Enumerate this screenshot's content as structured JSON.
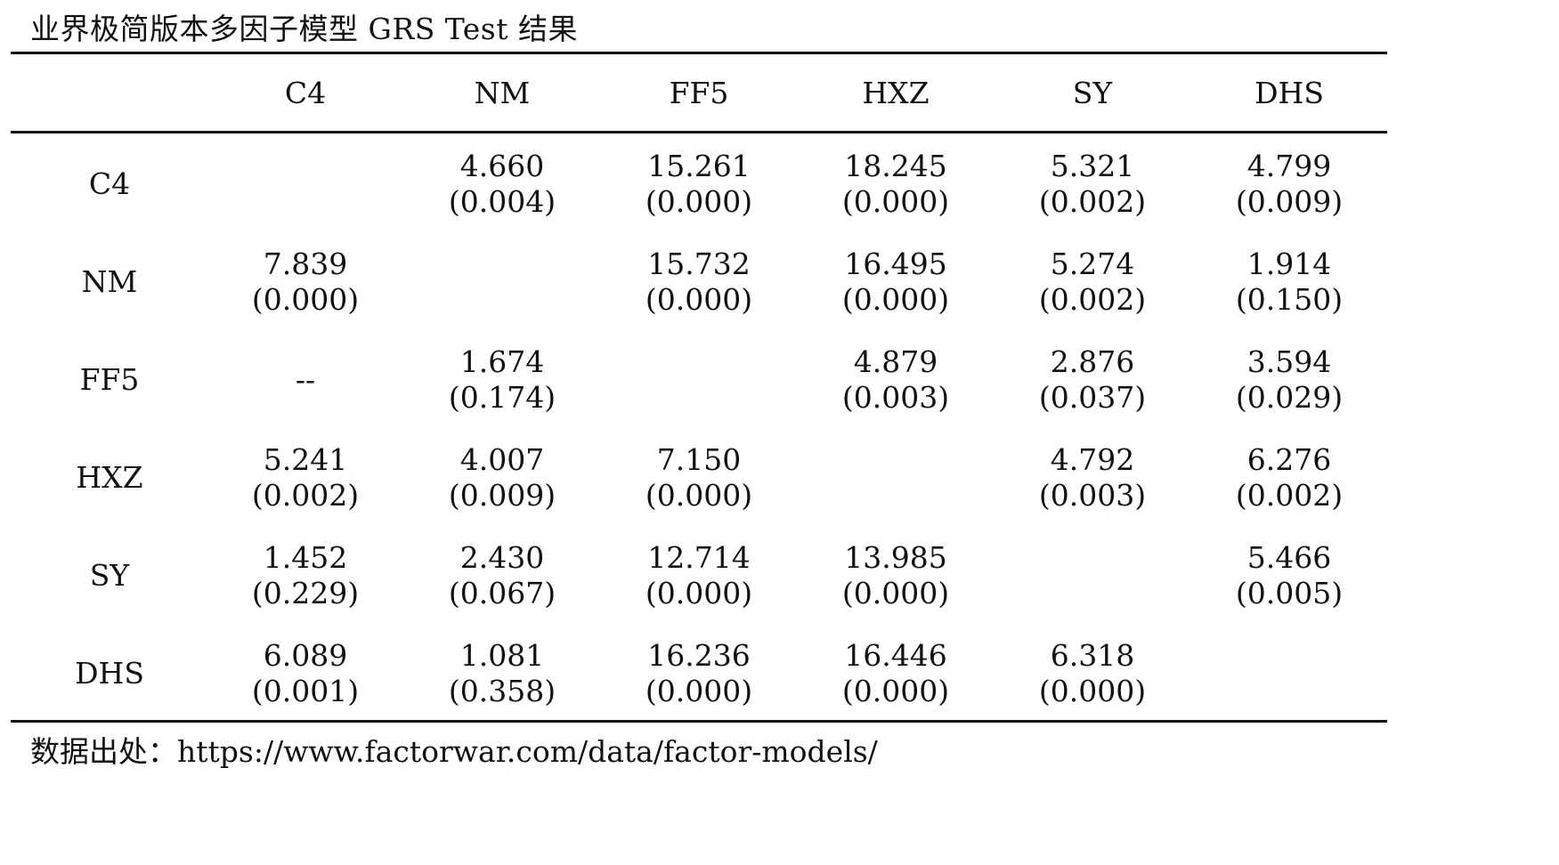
{
  "title": "业界极简版本多因子模型 GRS Test 结果",
  "columns": [
    "C4",
    "NM",
    "FF5",
    "HXZ",
    "SY",
    "DHS"
  ],
  "rows": [
    {
      "label": "C4",
      "cells": [
        {
          "stat": "",
          "pval": ""
        },
        {
          "stat": "4.660",
          "pval": "(0.004)"
        },
        {
          "stat": "15.261",
          "pval": "(0.000)"
        },
        {
          "stat": "18.245",
          "pval": "(0.000)"
        },
        {
          "stat": "5.321",
          "pval": "(0.002)"
        },
        {
          "stat": "4.799",
          "pval": "(0.009)"
        }
      ]
    },
    {
      "label": "NM",
      "cells": [
        {
          "stat": "7.839",
          "pval": "(0.000)"
        },
        {
          "stat": "",
          "pval": ""
        },
        {
          "stat": "15.732",
          "pval": "(0.000)"
        },
        {
          "stat": "16.495",
          "pval": "(0.000)"
        },
        {
          "stat": "5.274",
          "pval": "(0.002)"
        },
        {
          "stat": "1.914",
          "pval": "(0.150)"
        }
      ]
    },
    {
      "label": "FF5",
      "cells": [
        {
          "stat": "--",
          "pval": ""
        },
        {
          "stat": "1.674",
          "pval": "(0.174)"
        },
        {
          "stat": "",
          "pval": ""
        },
        {
          "stat": "4.879",
          "pval": "(0.003)"
        },
        {
          "stat": "2.876",
          "pval": "(0.037)"
        },
        {
          "stat": "3.594",
          "pval": "(0.029)"
        }
      ]
    },
    {
      "label": "HXZ",
      "cells": [
        {
          "stat": "5.241",
          "pval": "(0.002)"
        },
        {
          "stat": "4.007",
          "pval": "(0.009)"
        },
        {
          "stat": "7.150",
          "pval": "(0.000)"
        },
        {
          "stat": "",
          "pval": ""
        },
        {
          "stat": "4.792",
          "pval": "(0.003)"
        },
        {
          "stat": "6.276",
          "pval": "(0.002)"
        }
      ]
    },
    {
      "label": "SY",
      "cells": [
        {
          "stat": "1.452",
          "pval": "(0.229)"
        },
        {
          "stat": "2.430",
          "pval": "(0.067)"
        },
        {
          "stat": "12.714",
          "pval": "(0.000)"
        },
        {
          "stat": "13.985",
          "pval": "(0.000)"
        },
        {
          "stat": "",
          "pval": ""
        },
        {
          "stat": "5.466",
          "pval": "(0.005)"
        }
      ]
    },
    {
      "label": "DHS",
      "cells": [
        {
          "stat": "6.089",
          "pval": "(0.001)"
        },
        {
          "stat": "1.081",
          "pval": "(0.358)"
        },
        {
          "stat": "16.236",
          "pval": "(0.000)"
        },
        {
          "stat": "16.446",
          "pval": "(0.000)"
        },
        {
          "stat": "6.318",
          "pval": "(0.000)"
        },
        {
          "stat": "",
          "pval": ""
        }
      ]
    }
  ],
  "source": "数据出处：https://www.factorwar.com/data/factor-models/"
}
